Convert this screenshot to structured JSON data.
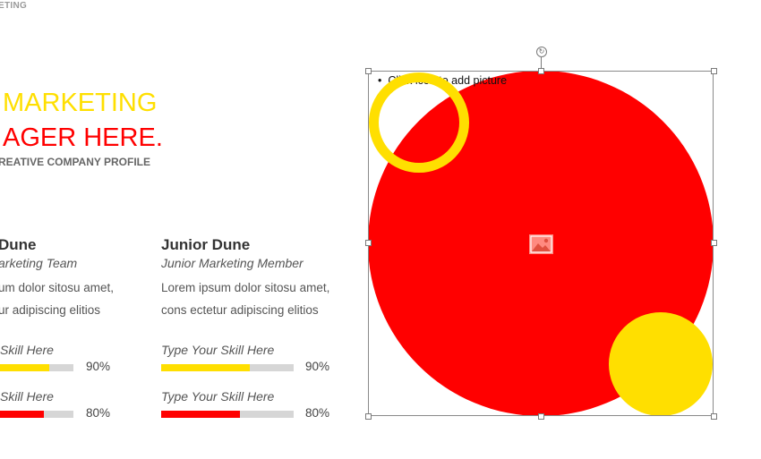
{
  "header": {
    "corner_label": "ETING",
    "title_line1": "MARKETING",
    "title_line2": "AGER HERE.",
    "subtitle": "REATIVE COMPANY PROFILE"
  },
  "members": [
    {
      "name": "Dune",
      "role": "arketing Team",
      "desc_line1": "um dolor sitosu amet,",
      "desc_line2": "ur adipiscing elitios",
      "skills": [
        {
          "label": "Skill Here",
          "percent_text": "90%",
          "value": 0.9,
          "color": "#ffdf00"
        },
        {
          "label": "Skill Here",
          "percent_text": "80%",
          "value": 0.8,
          "color": "#ff0000"
        }
      ]
    },
    {
      "name": "Junior Dune",
      "role": "Junior Marketing Member",
      "desc_line1": "Lorem ipsum dolor sitosu amet,",
      "desc_line2": "cons ectetur adipiscing elitios",
      "skills": [
        {
          "label": "Type Your Skill Here",
          "percent_text": "90%",
          "value": 0.9,
          "color": "#ffdf00"
        },
        {
          "label": "Type Your Skill Here",
          "percent_text": "80%",
          "value": 0.8,
          "color": "#ff0000"
        }
      ]
    }
  ],
  "picture": {
    "placeholder_text": "Click icon to add picture",
    "icon": "picture-icon",
    "rotate_icon": "rotate-icon"
  },
  "colors": {
    "brand_yellow": "#ffdf00",
    "brand_red": "#ff0000",
    "bar_track": "#d6d6d6"
  }
}
